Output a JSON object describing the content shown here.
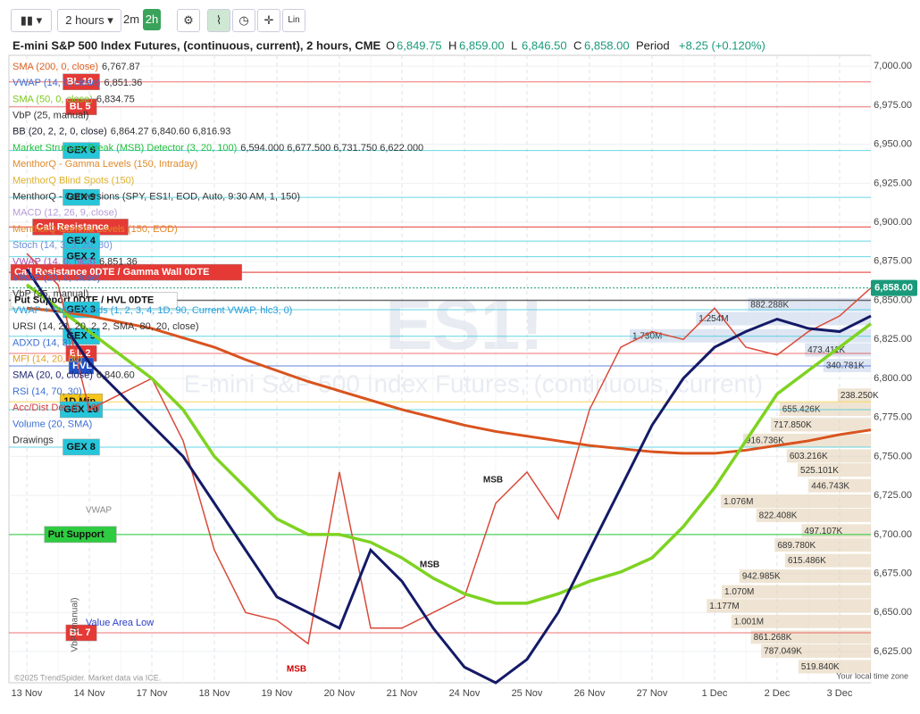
{
  "toolbar": {
    "interval": "2 hours",
    "buttons": [
      "2m",
      "2h"
    ],
    "scale": "Lin"
  },
  "header": {
    "title": "E-mini S&P 500 Index Futures, (continuous, current), 2 hours, CME",
    "ohlc": [
      {
        "key": "O",
        "value": "6,849.75"
      },
      {
        "key": "H",
        "value": "6,859.00"
      },
      {
        "key": "L",
        "value": "6,846.50"
      },
      {
        "key": "C",
        "value": "6,858.00"
      }
    ],
    "period_key": "Period",
    "period_value": "+8.25 (+0.120%)"
  },
  "indicators": [
    {
      "name": "SMA (200, 0, close)",
      "value": "6,767.87",
      "color": "#e06020"
    },
    {
      "name": "VWAP (14, 0, close)",
      "value": "6,851.36",
      "color": "#3b6fd4"
    },
    {
      "name": "SMA (50, 0, close)",
      "value": "6,834.75",
      "color": "#7ac91c"
    },
    {
      "name": "VbP (25, manual)",
      "color": "#333"
    },
    {
      "name": "BB (20, 2, 2, 0, close)",
      "value": "6,864.27  6,840.60  6,816.93",
      "color": "#223"
    },
    {
      "name": "Market Structure Break (MSB) Detector (3, 20, 100)",
      "value": "6,594.000  6,677.500  6,731.750  6,622.000",
      "color": "#1fbf3a"
    },
    {
      "name": "MenthorQ - Gamma Levels (150, Intraday)",
      "color": "#e08a2a"
    },
    {
      "name": "MenthorQ Blind Spots (150)",
      "color": "#e0b02a"
    },
    {
      "name": "MenthorQ - Conversions (SPY, ES1!, EOD, Auto, 9:30 AM, 1, 150)",
      "color": "#333"
    },
    {
      "name": "MACD (12, 26, 9, close)",
      "color": "#b59ad8"
    },
    {
      "name": "MenthorQ Gamma Levels (150, EOD)",
      "color": "#e08a2a"
    },
    {
      "name": "Stoch (14, 3, 3, 20, 80)",
      "color": "#6a8fd8"
    },
    {
      "name": "VWAP (14, 0, hlc3)",
      "value": "6,851.36",
      "color": "#b050b0"
    },
    {
      "name": "VWAP (20, 0, close)",
      "color": "#3b6fd4"
    },
    {
      "name": "VbP (35, manual)",
      "color": "#333"
    },
    {
      "name": "VWAP + Stdev Bands (1, 2, 3, 4, 1D, 90, Current VWAP, hlc3, 0)",
      "color": "#2a9bd8"
    },
    {
      "name": "URSI (14, 21, 20, 2, 2, SMA, 80, 20, close)",
      "color": "#333"
    },
    {
      "name": "ADXD (14, 3)",
      "color": "#3b6fd4"
    },
    {
      "name": "MFI (14, 20, 80)",
      "color": "#e0a02a"
    },
    {
      "name": "SMA (20, 0, close)",
      "value": "6,840.60",
      "color": "#1a1f6e"
    },
    {
      "name": "RSI (14, 70, 30)",
      "color": "#3b6fd4"
    },
    {
      "name": "Acc/Dist Dev (5, 10)",
      "color": "#d04040"
    },
    {
      "name": "Volume (20, SMA)",
      "color": "#3b6fd4"
    },
    {
      "name": "Drawings",
      "color": "#333"
    }
  ],
  "watermark": {
    "symbol": "ES1!",
    "name": "E-mini S&P 500 Index Futures, (continuous, current)"
  },
  "annotations": {
    "value_area_low": "Value Area Low",
    "vbp": "VbP (manual)",
    "vwap": "VWAP",
    "msb": [
      "MSB",
      "MSB",
      "MSB"
    ]
  },
  "footer": {
    "copyright": "©2025 TrendSpider. Market data via ICE.",
    "timezone": "Your local time zone"
  },
  "chart_data": {
    "type": "line",
    "categories": [
      "13 Nov",
      null,
      "14 Nov",
      null,
      "17 Nov",
      null,
      "18 Nov",
      null,
      "19 Nov",
      null,
      "20 Nov",
      null,
      "21 Nov",
      null,
      "24 Nov",
      null,
      "25 Nov",
      null,
      "26 Nov",
      null,
      "27 Nov",
      null,
      "1 Dec",
      null,
      "2 Dec",
      null,
      "3 Dec",
      null
    ],
    "ylim": [
      6605,
      7007
    ],
    "yticks": [
      {
        "value": 6625,
        "label": "6,625.00"
      },
      {
        "value": 6650,
        "label": "6,650.00"
      },
      {
        "value": 6675,
        "label": "6,675.00"
      },
      {
        "value": 6700,
        "label": "6,700.00"
      },
      {
        "value": 6725,
        "label": "6,725.00"
      },
      {
        "value": 6750,
        "label": "6,750.00"
      },
      {
        "value": 6775,
        "label": "6,775.00"
      },
      {
        "value": 6800,
        "label": "6,800.00"
      },
      {
        "value": 6825,
        "label": "6,825.00"
      },
      {
        "value": 6850,
        "label": "6,850.00"
      },
      {
        "value": 6875,
        "label": "6,875.00"
      },
      {
        "value": 6900,
        "label": "6,900.00"
      },
      {
        "value": 6925,
        "label": "6,925.00"
      },
      {
        "value": 6950,
        "label": "6,950.00"
      },
      {
        "value": 6975,
        "label": "6,975.00"
      },
      {
        "value": 7000,
        "label": "7,000.00"
      }
    ],
    "grid": true,
    "last": {
      "value": 6858,
      "label": "6,858.00"
    },
    "series": [
      {
        "color": "#d94a3a",
        "width": 1.5,
        "values": [
          6880,
          6860,
          6780,
          6790,
          6800,
          6760,
          6690,
          6650,
          6645,
          6630,
          6740,
          6640,
          6640,
          6650,
          6660,
          6720,
          6740,
          6710,
          6780,
          6820,
          6830,
          6825,
          6845,
          6820,
          6815,
          6830,
          6840,
          6858
        ]
      },
      {
        "color": "#d9531e",
        "width": 3,
        "values": [
          6845,
          6843,
          6840,
          6836,
          6832,
          6826,
          6820,
          6812,
          6805,
          6798,
          6792,
          6786,
          6780,
          6775,
          6770,
          6766,
          6763,
          6760,
          6757,
          6755,
          6753,
          6752,
          6752,
          6754,
          6757,
          6760,
          6764,
          6767
        ]
      },
      {
        "color": "#7ed321",
        "width": 3.5,
        "values": [
          6860,
          6845,
          6830,
          6815,
          6800,
          6780,
          6750,
          6730,
          6710,
          6700,
          6700,
          6695,
          6685,
          6672,
          6662,
          6656,
          6656,
          6662,
          6670,
          6676,
          6685,
          6705,
          6730,
          6760,
          6790,
          6805,
          6820,
          6835
        ]
      },
      {
        "color": "#141a66",
        "width": 3,
        "values": [
          6870,
          6840,
          6810,
          6790,
          6770,
          6750,
          6720,
          6690,
          6660,
          6650,
          6640,
          6690,
          6670,
          6640,
          6615,
          6605,
          6620,
          6650,
          6690,
          6730,
          6770,
          6800,
          6820,
          6830,
          6838,
          6832,
          6830,
          6840
        ]
      }
    ],
    "levels": [
      {
        "label": "BL 10",
        "value": 6990,
        "color": "#e53935"
      },
      {
        "label": "BL 5",
        "value": 6974,
        "color": "#e53935"
      },
      {
        "label": "GEX 6",
        "value": 6946,
        "color": "#26c6da"
      },
      {
        "label": "GEX 9",
        "value": 6916,
        "color": "#26c6da"
      },
      {
        "label": "Call Resistance",
        "value": 6897,
        "color": "#e53935"
      },
      {
        "label": "GEX 4",
        "value": 6888,
        "color": "#26c6da"
      },
      {
        "label": "GEX 2",
        "value": 6878,
        "color": "#26c6da"
      },
      {
        "label": "Call Resistance 0DTE / Gamma Wall 0DTE",
        "value": 6868,
        "color": "#e53935"
      },
      {
        "label": "Put Support 0DTE / HVL 0DTE",
        "value": 6850,
        "color": "#ffffff"
      },
      {
        "label": "GEX 3",
        "value": 6844,
        "color": "#26c6da"
      },
      {
        "label": "GEX 5",
        "value": 6827,
        "color": "#26c6da"
      },
      {
        "label": "BL 2",
        "value": 6816,
        "color": "#e53935"
      },
      {
        "label": "HVL",
        "value": 6808,
        "color": "#1e50c8"
      },
      {
        "label": "1D Min",
        "value": 6785,
        "color": "#f5c518"
      },
      {
        "label": "GEX 10",
        "value": 6780,
        "color": "#26c6da"
      },
      {
        "label": "GEX 8",
        "value": 6756,
        "color": "#26c6da"
      },
      {
        "label": "Put Support",
        "value": 6700,
        "color": "#2ecc40"
      },
      {
        "label": "BL 7",
        "value": 6637,
        "color": "#e53935"
      }
    ],
    "volume_profile": {
      "prices": [
        6847,
        6838,
        6827,
        6818,
        6808,
        6789,
        6780,
        6770,
        6760,
        6750,
        6741,
        6731,
        6721,
        6712,
        6702,
        6693,
        6683,
        6673,
        6663,
        6654,
        6644,
        6634,
        6625,
        6615
      ],
      "values": [
        882288,
        1254000,
        1730000,
        473411,
        340781,
        238250,
        655426,
        717850,
        916736,
        603216,
        525101,
        446743,
        1076000,
        822408,
        497107,
        689780,
        615486,
        942985,
        1070000,
        1177000,
        1001000,
        861268,
        787049,
        519840
      ],
      "value_labels": [
        "882.288K",
        "1.254M",
        "1.730M",
        "473.411K",
        "340.781K",
        "238.250K",
        "655.426K",
        "717.850K",
        "916.736K",
        "603.216K",
        "525.101K",
        "446.743K",
        "1.076M",
        "822.408K",
        "497.107K",
        "689.780K",
        "615.486K",
        "942.985K",
        "1.070M",
        "1.177M",
        "1.001M",
        "861.268K",
        "787.049K",
        "519.840K"
      ]
    }
  }
}
